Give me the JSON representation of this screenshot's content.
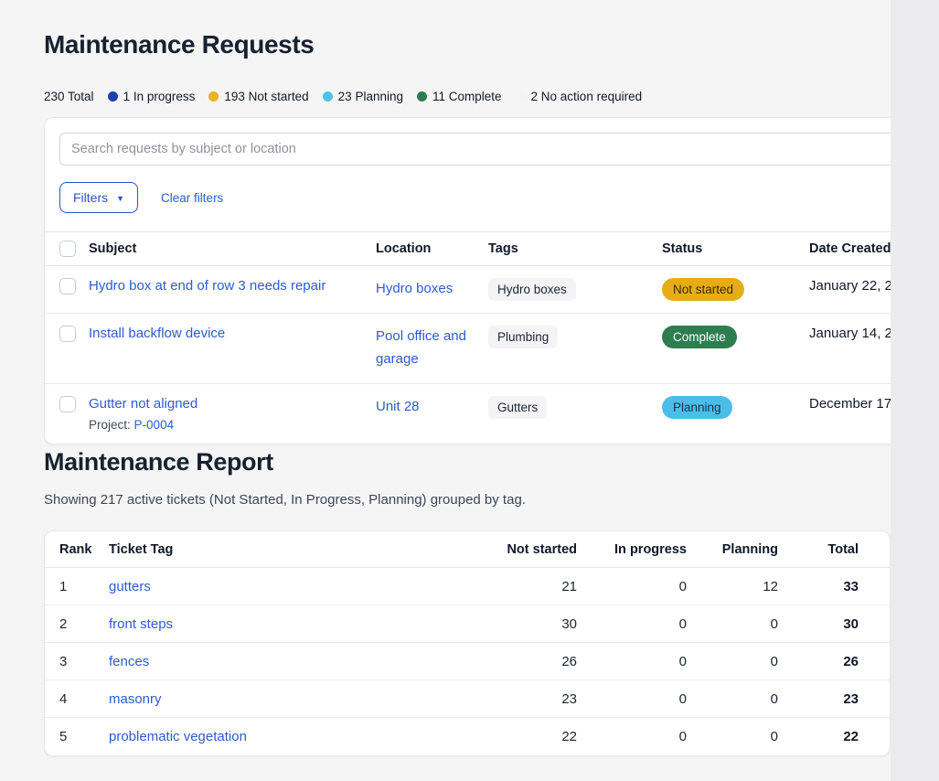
{
  "header": {
    "title": "Maintenance Requests",
    "summary_total": "230 Total",
    "summary_items": [
      {
        "label": "1 In progress",
        "color": "#1f3fae"
      },
      {
        "label": "193 Not started",
        "color": "#ecb21f"
      },
      {
        "label": "23 Planning",
        "color": "#4fc3e8"
      },
      {
        "label": "11 Complete",
        "color": "#2e7d4f"
      },
      {
        "label": "2 No action required",
        "color": "#f3f4f6"
      }
    ]
  },
  "toolbar": {
    "search_placeholder": "Search requests by subject or location",
    "filters_label": "Filters",
    "clear_filters_label": "Clear filters"
  },
  "requests_table": {
    "columns": {
      "subject": "Subject",
      "location": "Location",
      "tags": "Tags",
      "status": "Status",
      "date": "Date Created"
    },
    "rows": [
      {
        "subject": "Hydro box at end of row 3 needs repair",
        "location": "Hydro boxes",
        "tag": "Hydro boxes",
        "status": "Not started",
        "status_bg": "#e7ad15",
        "status_fg": "#392b05",
        "date": "January 22, 2"
      },
      {
        "subject": "Install backflow device",
        "location": "Pool office and garage",
        "tag": "Plumbing",
        "status": "Complete",
        "status_bg": "#2e7d4f",
        "status_fg": "#ffffff",
        "date": "January 14, 2"
      },
      {
        "subject": "Gutter not aligned",
        "project_label": "Project:",
        "project_id": "P-0004",
        "location": "Unit 28",
        "tag": "Gutters",
        "status": "Planning",
        "status_bg": "#4cbde9",
        "status_fg": "#10354a",
        "date": "December 17"
      }
    ]
  },
  "report": {
    "title": "Maintenance Report",
    "subtitle": "Showing 217 active tickets (Not Started, In Progress, Planning) grouped by tag.",
    "columns": {
      "rank": "Rank",
      "tag": "Ticket Tag",
      "not_started": "Not started",
      "in_progress": "In progress",
      "planning": "Planning",
      "total": "Total"
    },
    "rows": [
      {
        "rank": "1",
        "tag": "gutters",
        "not_started": "21",
        "in_progress": "0",
        "planning": "12",
        "total": "33"
      },
      {
        "rank": "2",
        "tag": "front steps",
        "not_started": "30",
        "in_progress": "0",
        "planning": "0",
        "total": "30"
      },
      {
        "rank": "3",
        "tag": "fences",
        "not_started": "26",
        "in_progress": "0",
        "planning": "0",
        "total": "26"
      },
      {
        "rank": "4",
        "tag": "masonry",
        "not_started": "23",
        "in_progress": "0",
        "planning": "0",
        "total": "23"
      },
      {
        "rank": "5",
        "tag": "problematic vegetation",
        "not_started": "22",
        "in_progress": "0",
        "planning": "0",
        "total": "22"
      }
    ]
  }
}
